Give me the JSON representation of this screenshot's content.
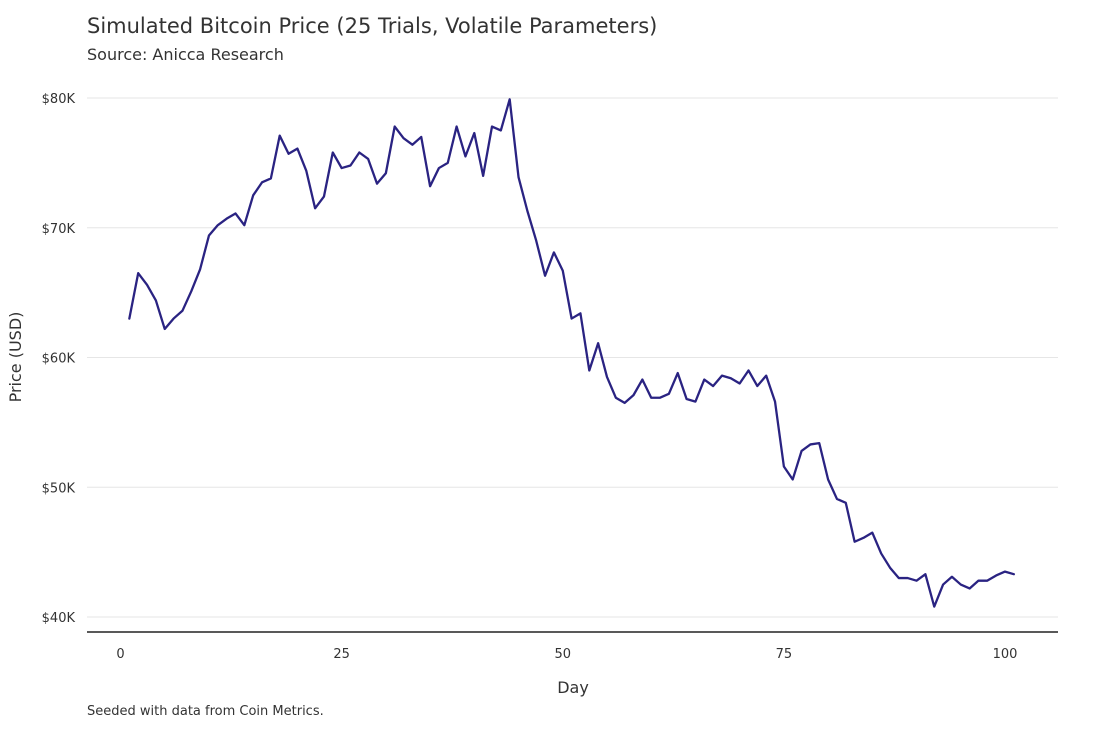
{
  "chart_data": {
    "type": "line",
    "title": "Simulated Bitcoin Price (25 Trials, Volatile Parameters)",
    "subtitle": "Source: Anicca Research",
    "caption": "Seeded with data from Coin Metrics.",
    "xlabel": "Day",
    "ylabel": "Price (USD)",
    "xlim": [
      0,
      101
    ],
    "ylim": [
      40000,
      80000
    ],
    "x_ticks": [
      0,
      25,
      50,
      75,
      100
    ],
    "x_tick_labels": [
      "0",
      "25",
      "50",
      "75",
      "100"
    ],
    "y_ticks": [
      40000,
      50000,
      60000,
      70000,
      80000
    ],
    "y_tick_labels": [
      "$40K",
      "$50K",
      "$60K",
      "$70K",
      "$80K"
    ],
    "grid": "horizontal",
    "color": "#2a2382",
    "series": [
      {
        "x": [
          1,
          2,
          3,
          4,
          5,
          6,
          7,
          8,
          9,
          10,
          11,
          12,
          13,
          14,
          15,
          16,
          17,
          18,
          19,
          20,
          21,
          22,
          23,
          24,
          25,
          26,
          27,
          28,
          29,
          30,
          31,
          32,
          33,
          34,
          35,
          36,
          37,
          38,
          39,
          40,
          41,
          42,
          43,
          44,
          45,
          46,
          47,
          48,
          49,
          50,
          51,
          52,
          53,
          54,
          55,
          56,
          57,
          58,
          59,
          60,
          61,
          62,
          63,
          64,
          65,
          66,
          67,
          68,
          69,
          70,
          71,
          72,
          73,
          74,
          75,
          76,
          77,
          78,
          79,
          80,
          81,
          82,
          83,
          84,
          85,
          86,
          87,
          88,
          89,
          90,
          91,
          92,
          93,
          94,
          95,
          96,
          97,
          98,
          99,
          100,
          101
        ],
        "values": [
          63000,
          66500,
          65600,
          64400,
          62200,
          63000,
          63600,
          65100,
          66800,
          69400,
          70200,
          70700,
          71100,
          70200,
          72500,
          73500,
          73800,
          77100,
          75700,
          76100,
          74400,
          71500,
          72400,
          75800,
          74600,
          74800,
          75800,
          75300,
          73400,
          74200,
          77800,
          76900,
          76400,
          77000,
          73200,
          74600,
          75000,
          77800,
          75500,
          77300,
          74000,
          77800,
          77500,
          79900,
          73900,
          71300,
          69000,
          66300,
          68100,
          66700,
          63000,
          63400,
          59000,
          61100,
          58500,
          56900,
          56500,
          57100,
          58300,
          56900,
          56900,
          57200,
          58800,
          56800,
          56600,
          58300,
          57800,
          58600,
          58400,
          58000,
          59000,
          57800,
          58600,
          56600,
          51600,
          50600,
          52800,
          53300,
          53400,
          50600,
          49100,
          48800,
          45800,
          46100,
          46500,
          44900,
          43800,
          43000,
          43000,
          42800,
          43300,
          40800,
          42500,
          43100,
          42500,
          42200,
          42800,
          42800,
          43200,
          43500,
          43300
        ]
      }
    ]
  }
}
